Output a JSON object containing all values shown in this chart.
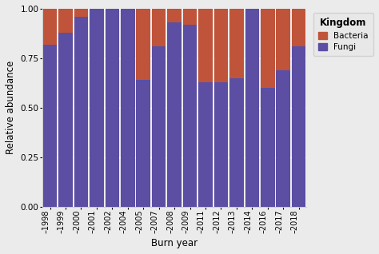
{
  "years": [
    "1998",
    "1999",
    "2000",
    "2001",
    "2002",
    "2004",
    "2005",
    "2007",
    "2008",
    "2009",
    "2011",
    "2012",
    "2013",
    "2014",
    "2016",
    "2017",
    "2018"
  ],
  "fungi": [
    0.82,
    0.88,
    0.96,
    1.0,
    1.0,
    1.0,
    0.64,
    0.81,
    0.93,
    0.92,
    0.63,
    0.63,
    0.65,
    1.0,
    0.6,
    0.69,
    0.81
  ],
  "bacteria": [
    0.18,
    0.12,
    0.04,
    0.0,
    0.0,
    0.0,
    0.36,
    0.19,
    0.07,
    0.08,
    0.37,
    0.37,
    0.35,
    0.0,
    0.4,
    0.31,
    0.19
  ],
  "fungi_color": "#5b4ea3",
  "bacteria_color": "#c0543a",
  "background_color": "#ebebeb",
  "panel_color": "#ebebeb",
  "grid_color": "#ffffff",
  "title": "Kingdom",
  "xlabel": "Burn year",
  "ylabel": "Relative abundance",
  "ylim": [
    0,
    1.0
  ],
  "yticks": [
    0.0,
    0.25,
    0.5,
    0.75,
    1.0
  ],
  "ytick_labels": [
    "0.00",
    "0.25",
    "0.50",
    "0.75",
    "1.00"
  ],
  "bar_width": 0.9,
  "legend_facecolor": "#e8e8e8",
  "legend_edgecolor": "#cccccc"
}
